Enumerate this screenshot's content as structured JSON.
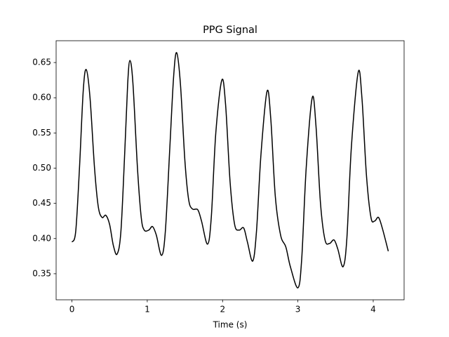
{
  "chart_data": {
    "type": "line",
    "title": "PPG Signal",
    "x_label": "Time (s)",
    "x": [
      0,
      0.05,
      0.1,
      0.15,
      0.19,
      0.24,
      0.3,
      0.35,
      0.4,
      0.45,
      0.5,
      0.55,
      0.6,
      0.65,
      0.7,
      0.74,
      0.77,
      0.81,
      0.87,
      0.92,
      0.96,
      1.02,
      1.07,
      1.12,
      1.19,
      1.24,
      1.3,
      1.35,
      1.39,
      1.44,
      1.5,
      1.55,
      1.6,
      1.67,
      1.72,
      1.8,
      1.85,
      1.91,
      1.99,
      2.04,
      2.1,
      2.16,
      2.22,
      2.28,
      2.33,
      2.4,
      2.45,
      2.51,
      2.59,
      2.64,
      2.7,
      2.77,
      2.84,
      2.9,
      3.0,
      3.05,
      3.11,
      3.19,
      3.24,
      3.3,
      3.36,
      3.42,
      3.48,
      3.53,
      3.6,
      3.65,
      3.71,
      3.8,
      3.85,
      3.91,
      3.97,
      4.02,
      4.07,
      4.12,
      4.2
    ],
    "series": [
      {
        "color": "#000000",
        "values": [
          0.395,
          0.41,
          0.5,
          0.61,
          0.64,
          0.6,
          0.5,
          0.445,
          0.43,
          0.433,
          0.42,
          0.39,
          0.378,
          0.41,
          0.52,
          0.62,
          0.653,
          0.62,
          0.5,
          0.43,
          0.412,
          0.412,
          0.417,
          0.405,
          0.376,
          0.41,
          0.53,
          0.63,
          0.664,
          0.62,
          0.51,
          0.455,
          0.442,
          0.441,
          0.425,
          0.392,
          0.43,
          0.55,
          0.625,
          0.59,
          0.48,
          0.42,
          0.412,
          0.415,
          0.395,
          0.368,
          0.41,
          0.52,
          0.609,
          0.57,
          0.46,
          0.405,
          0.388,
          0.36,
          0.33,
          0.37,
          0.5,
          0.6,
          0.56,
          0.45,
          0.398,
          0.393,
          0.398,
          0.385,
          0.36,
          0.4,
          0.53,
          0.636,
          0.6,
          0.49,
          0.43,
          0.425,
          0.43,
          0.415,
          0.382
        ]
      }
    ],
    "xlim": [
      -0.21,
      4.41
    ],
    "xticks": [
      0,
      1,
      2,
      3,
      4
    ],
    "ylim": [
      0.313,
      0.681
    ],
    "yticks": [
      0.35,
      {
        "value": 0.4,
        "label": "0.40"
      },
      0.45,
      {
        "value": 0.5,
        "label": "0.50"
      },
      0.55,
      {
        "value": 0.6,
        "label": "0.60"
      },
      0.65
    ]
  }
}
